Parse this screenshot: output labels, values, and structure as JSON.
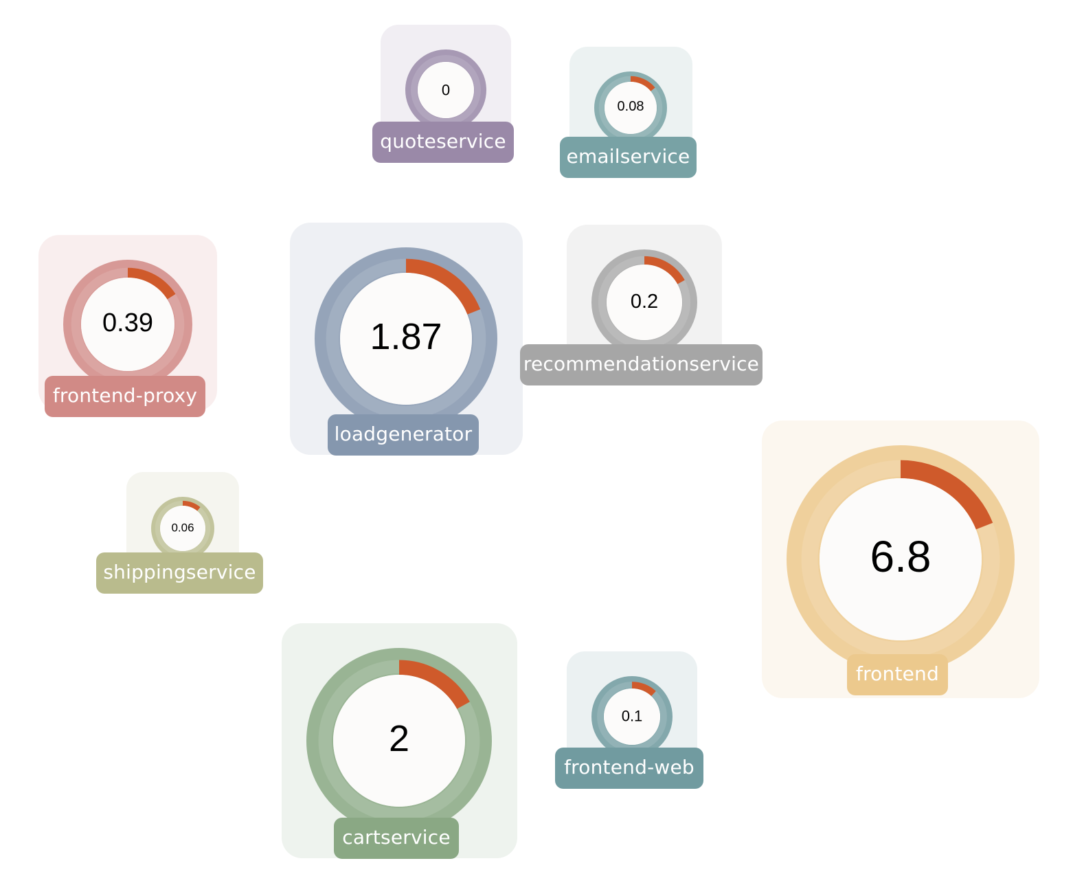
{
  "colors": {
    "progress_arc": "#cf5a2b",
    "gauge_center": "#fcfbfa"
  },
  "services": [
    {
      "id": "quoteservice",
      "name": "quoteservice",
      "value": "0",
      "progress": 0.0,
      "color": "#9a89a8"
    },
    {
      "id": "emailservice",
      "name": "emailservice",
      "value": "0.08",
      "progress": 0.14,
      "color": "#78a2a5"
    },
    {
      "id": "frontend-proxy",
      "name": "frontend-proxy",
      "value": "0.39",
      "progress": 0.16,
      "color": "#d18a86"
    },
    {
      "id": "loadgenerator",
      "name": "loadgenerator",
      "value": "1.87",
      "progress": 0.19,
      "color": "#8597ae"
    },
    {
      "id": "recommendationservice",
      "name": "recommendationservice",
      "value": "0.2",
      "progress": 0.17,
      "color": "#a6a6a6"
    },
    {
      "id": "shippingservice",
      "name": "shippingservice",
      "value": "0.06",
      "progress": 0.11,
      "color": "#b9bb8d"
    },
    {
      "id": "frontend",
      "name": "frontend",
      "value": "6.8",
      "progress": 0.19,
      "color": "#ecc98d"
    },
    {
      "id": "cartservice",
      "name": "cartservice",
      "value": "2",
      "progress": 0.17,
      "color": "#8aa884"
    },
    {
      "id": "frontend-web",
      "name": "frontend-web",
      "value": "0.1",
      "progress": 0.12,
      "color": "#719ba0"
    }
  ]
}
